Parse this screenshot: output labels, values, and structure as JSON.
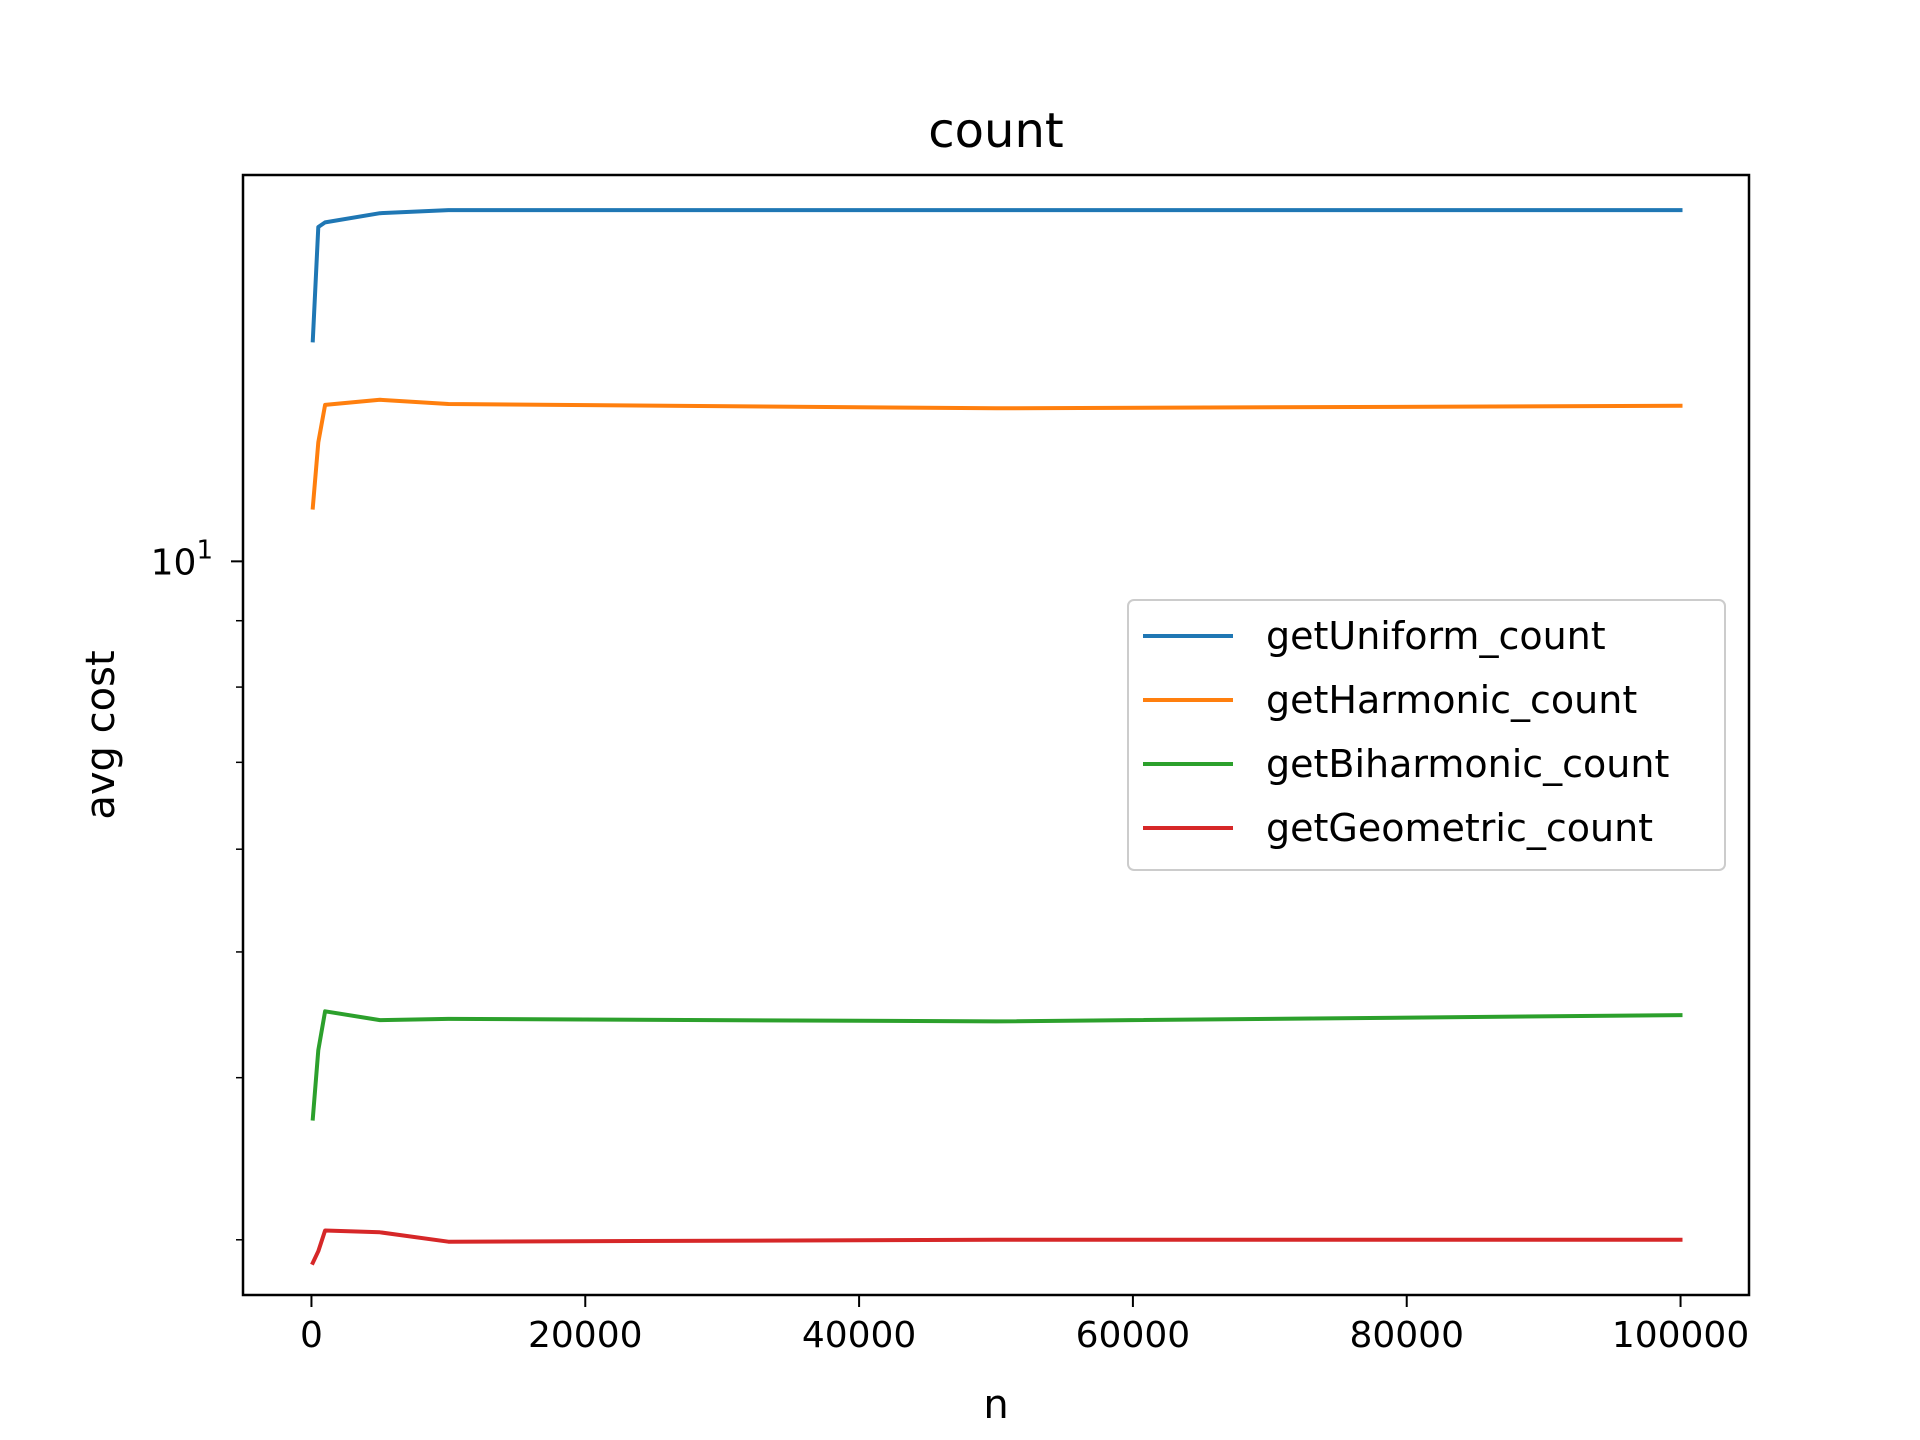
{
  "chart_data": {
    "type": "line",
    "title": "count",
    "xlabel": "n",
    "ylabel": "avg cost",
    "xscale": "linear",
    "yscale": "log",
    "xlim": [
      -5000,
      105000
    ],
    "ylim": [
      2.72,
      19.85
    ],
    "xticks": [
      0,
      20000,
      40000,
      60000,
      80000,
      100000
    ],
    "xtick_labels": [
      "0",
      "20000",
      "40000",
      "60000",
      "80000",
      "100000"
    ],
    "ymajor_ticks": [
      {
        "value": 10,
        "base": "10",
        "exp": "1"
      }
    ],
    "yminor_ticks": [
      3,
      4,
      5,
      6,
      7,
      8,
      9
    ],
    "grid": false,
    "legend_position": "center-right",
    "x": [
      100,
      500,
      1000,
      5000,
      10000,
      50000,
      100000
    ],
    "series": [
      {
        "name": "getUniform_count",
        "color": "#1f77b4",
        "values": [
          14.8,
          18.1,
          18.25,
          18.55,
          18.65,
          18.65,
          18.65
        ]
      },
      {
        "name": "getHarmonic_count",
        "color": "#ff7f0e",
        "values": [
          11.0,
          12.35,
          13.2,
          13.32,
          13.22,
          13.12,
          13.18
        ]
      },
      {
        "name": "getBiharmonic_count",
        "color": "#2ca02c",
        "values": [
          3.72,
          4.2,
          4.5,
          4.43,
          4.44,
          4.42,
          4.47
        ]
      },
      {
        "name": "getGeometric_count",
        "color": "#d62728",
        "values": [
          2.88,
          2.94,
          3.05,
          3.04,
          2.99,
          3.0,
          3.0
        ]
      }
    ]
  }
}
